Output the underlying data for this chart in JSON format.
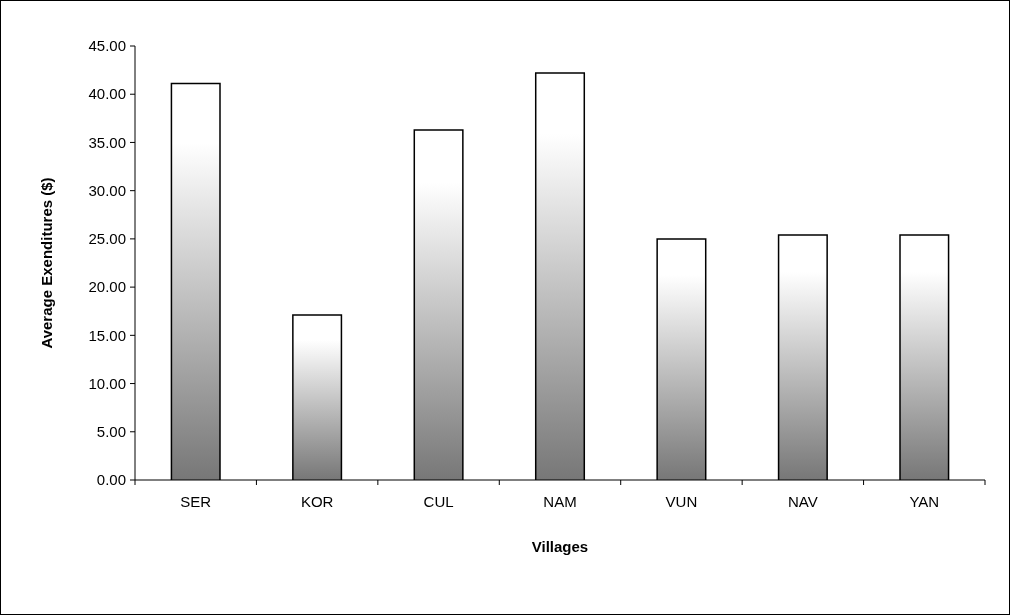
{
  "chart_data": {
    "type": "bar",
    "xlabel": "Villages",
    "ylabel": "Average Exenditures ($)",
    "categories": [
      "SER",
      "KOR",
      "CUL",
      "NAM",
      "VUN",
      "NAV",
      "YAN"
    ],
    "values": [
      41.1,
      17.1,
      36.3,
      42.2,
      25.0,
      25.4,
      25.4
    ],
    "color": "#777777",
    "ylim": [
      0,
      45
    ],
    "yticks": [
      {
        "value": 0,
        "label": "0.00"
      },
      {
        "value": 5,
        "label": "5.00"
      },
      {
        "value": 10,
        "label": "10.00"
      },
      {
        "value": 15,
        "label": "15.00"
      },
      {
        "value": 20,
        "label": "20.00"
      },
      {
        "value": 25,
        "label": "25.00"
      },
      {
        "value": 30,
        "label": "30.00"
      },
      {
        "value": 35,
        "label": "35.00"
      },
      {
        "value": 40,
        "label": "40.00"
      },
      {
        "value": 45,
        "label": "45.00"
      }
    ]
  }
}
